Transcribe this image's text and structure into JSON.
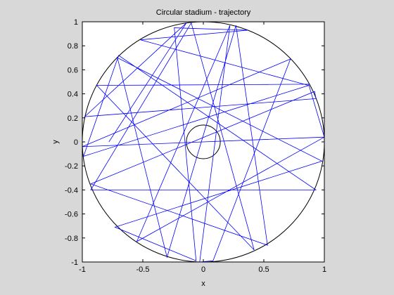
{
  "window": {
    "background": "#d8d8d8"
  },
  "chart_data": {
    "type": "line",
    "title": "Circular stadium - trajectory",
    "xlabel": "x",
    "ylabel": "y",
    "xlim": [
      -1,
      1
    ],
    "ylim": [
      -1,
      1
    ],
    "xticks": [
      -1,
      -0.5,
      0,
      0.5,
      1
    ],
    "xtick_labels": [
      "-1",
      "-0.5",
      "0",
      "0.5",
      "1"
    ],
    "yticks": [
      1,
      0.8,
      0.6,
      0.4,
      0.2,
      0,
      -0.2,
      -0.4,
      -0.6,
      -0.8,
      -1
    ],
    "ytick_labels": [
      "1",
      "0.8",
      "0.6",
      "0.4",
      "0.2",
      "0",
      "-0.2",
      "-0.4",
      "-0.6",
      "-0.8",
      "-1"
    ],
    "grid": false,
    "colors": {
      "trajectory": "#0000ff",
      "boundary": "#000000",
      "axes_bg": "#ffffff"
    },
    "series": [
      {
        "role": "boundary-outer",
        "shape": "circle",
        "center": [
          0,
          0
        ],
        "radius": 1.0
      },
      {
        "role": "boundary-inner",
        "shape": "circle",
        "center": [
          0,
          0
        ],
        "radius": 0.14
      },
      {
        "role": "trajectory",
        "x": [
          -0.78,
          -0.14,
          -0.98,
          0.93,
          0.92,
          -0.93,
          0.53,
          0.27,
          -0.3,
          -0.71,
          0.98,
          -0.73,
          -0.06,
          -0.24,
          0.37,
          -0.52,
          0.87,
          -0.99,
          -0.7,
          0.93,
          -0.93,
          -0.1,
          0.42,
          -0.88,
          0.87,
          1.0,
          -1.0,
          0.72,
          0.08,
          -0.03,
          0.22,
          -0.55,
          1.0
        ],
        "y": [
          0.0,
          0.99,
          0.21,
          0.36,
          0.42,
          -0.35,
          -0.86,
          0.97,
          -0.96,
          0.7,
          -0.16,
          -0.71,
          -0.99,
          0.95,
          0.93,
          0.85,
          0.47,
          -0.12,
          0.72,
          -0.4,
          -0.4,
          0.99,
          -0.9,
          0.47,
          0.48,
          0.04,
          -0.04,
          0.69,
          -0.99,
          -1.0,
          0.97,
          -0.83,
          0.04
        ]
      }
    ]
  }
}
